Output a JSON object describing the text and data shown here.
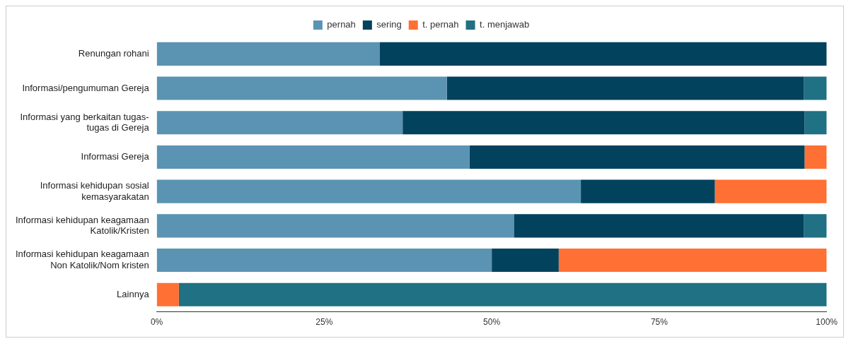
{
  "chart_data": {
    "type": "bar",
    "orientation": "horizontal",
    "stacked": true,
    "legend": "top",
    "grid": false,
    "categories": [
      "Renungan rohani",
      "Informasi/pengumuman Gereja",
      "Informasi yang berkaitan tugas-tugas di Gereja",
      "Informasi Gereja",
      "Informasi kehidupan sosial kemasyarakatan",
      "Informasi kehidupan keagamaan Katolik/Kristen",
      "Informasi kehidupan keagamaan Non Katolik/Nom kristen",
      "Lainnya"
    ],
    "series": [
      {
        "name": "pernah",
        "color": "#5b93b3",
        "values": [
          33.3,
          43.3,
          36.7,
          46.7,
          63.3,
          53.3,
          50,
          0
        ]
      },
      {
        "name": "sering",
        "color": "#02425d",
        "values": [
          66.7,
          53.3,
          60,
          50,
          20,
          43.3,
          10,
          0
        ]
      },
      {
        "name": "t. pernah",
        "color": "#ff7035",
        "values": [
          0,
          0,
          0,
          3.3,
          16.7,
          0,
          40,
          3.3
        ]
      },
      {
        "name": "t. menjawab",
        "color": "#1f7183",
        "values": [
          0,
          3.4,
          3.3,
          0,
          0,
          3.4,
          0,
          96.7
        ]
      }
    ],
    "xlim": [
      0,
      100
    ],
    "xticks": [
      {
        "value": 0,
        "label": "0%"
      },
      {
        "value": 25,
        "label": "25%"
      },
      {
        "value": 50,
        "label": "50%"
      },
      {
        "value": 75,
        "label": "75%"
      },
      {
        "value": 100,
        "label": "100%"
      }
    ]
  }
}
